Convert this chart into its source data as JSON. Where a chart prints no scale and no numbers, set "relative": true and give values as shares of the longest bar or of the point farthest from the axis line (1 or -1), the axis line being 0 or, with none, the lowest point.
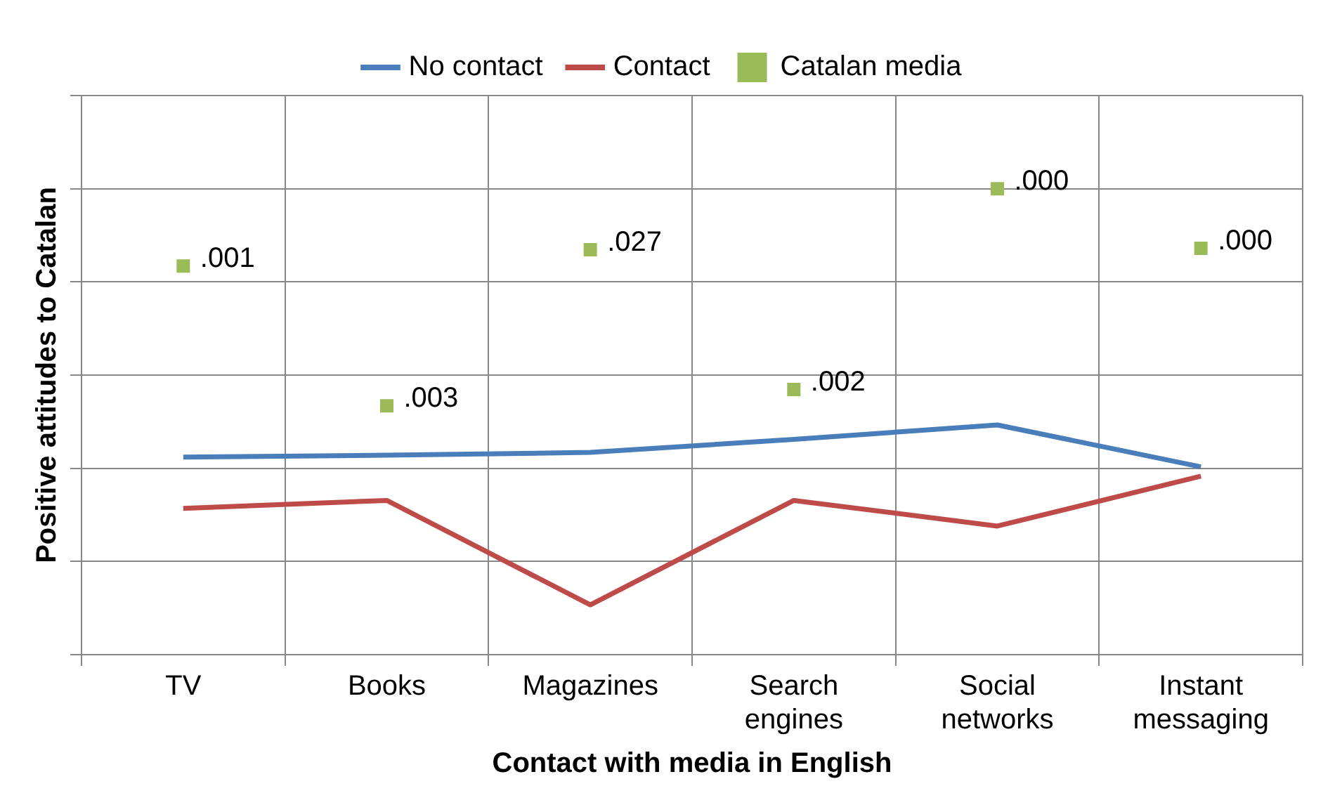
{
  "chart_data": {
    "type": "line",
    "xlabel": "Contact with media in English",
    "ylabel": "Positive attitudes to Catalan",
    "categories": [
      "TV",
      "Books",
      "Magazines",
      "Search engines",
      "Social networks",
      "Instant messaging"
    ],
    "relative": true,
    "grid": true,
    "legend": "top",
    "marker": "none",
    "line_style": "solid",
    "series": [
      {
        "name": "No contact",
        "color": "#4a7ebb",
        "values": [
          0.424,
          0.428,
          0.434,
          0.462,
          0.493,
          0.403
        ]
      },
      {
        "name": "Contact",
        "color": "#be4b48",
        "values": [
          0.314,
          0.331,
          0.107,
          0.331,
          0.276,
          0.383
        ]
      },
      {
        "name": "Catalan media",
        "type": "scatter",
        "marker": "square",
        "color": "#9bbb59",
        "values": [
          0.834,
          0.534,
          0.869,
          0.569,
          1,
          0.872
        ]
      }
    ],
    "annotations": [
      {
        "text": ".001",
        "x": "TV",
        "y": 0.834
      },
      {
        "text": ".003",
        "x": "Books",
        "y": 0.534
      },
      {
        "text": ".027",
        "x": "Magazines",
        "y": 0.869
      },
      {
        "text": ".002",
        "x": "Search engines",
        "y": 0.569
      },
      {
        "text": ".000",
        "x": "Social networks",
        "y": 1
      },
      {
        "text": ".000",
        "x": "Instant messaging",
        "y": 0.872
      }
    ]
  }
}
